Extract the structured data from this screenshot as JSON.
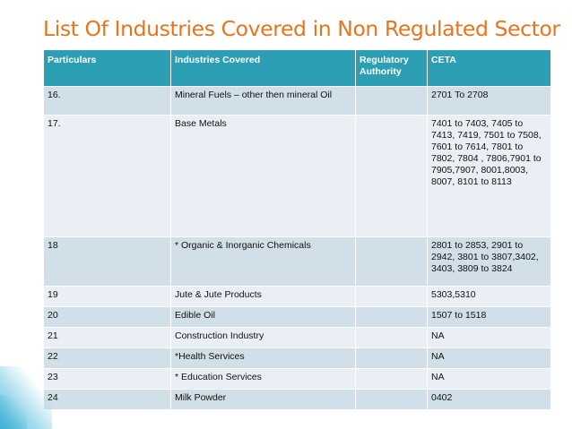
{
  "slide": {
    "title": "List Of Industries Covered in Non Regulated Sector",
    "colors": {
      "title": "#e8741c",
      "header": "#2d9fb5",
      "row_dark": "#d0dfe8",
      "row_light": "#e9eff4"
    }
  },
  "table": {
    "headers": [
      "Particulars",
      "Industries Covered",
      "Regulatory Authority",
      "CETA"
    ],
    "rows": [
      [
        "16.",
        "Mineral Fuels – other then mineral Oil",
        "",
        "2701 To 2708"
      ],
      [
        "17.",
        "Base Metals",
        "",
        "7401 to 7403, 7405 to 7413, 7419, 7501 to 7508, 7601 to 7614, 7801 to 7802, 7804 , 7806,7901 to 7905,7907, 8001,8003, 8007, 8101 to 8113"
      ],
      [
        "18",
        "* Organic & Inorganic Chemicals",
        "",
        "2801 to 2853, 2901 to 2942, 3801 to 3807,3402, 3403, 3809 to 3824"
      ],
      [
        "19",
        "Jute & Jute Products",
        "",
        "5303,5310"
      ],
      [
        "20",
        "Edible Oil",
        "",
        "1507 to 1518"
      ],
      [
        "21",
        "Construction Industry",
        "",
        "NA"
      ],
      [
        "22",
        "*Health Services",
        "",
        "NA"
      ],
      [
        "23",
        "* Education Services",
        "",
        "NA"
      ],
      [
        "24",
        "Milk Powder",
        "",
        "0402"
      ]
    ]
  }
}
